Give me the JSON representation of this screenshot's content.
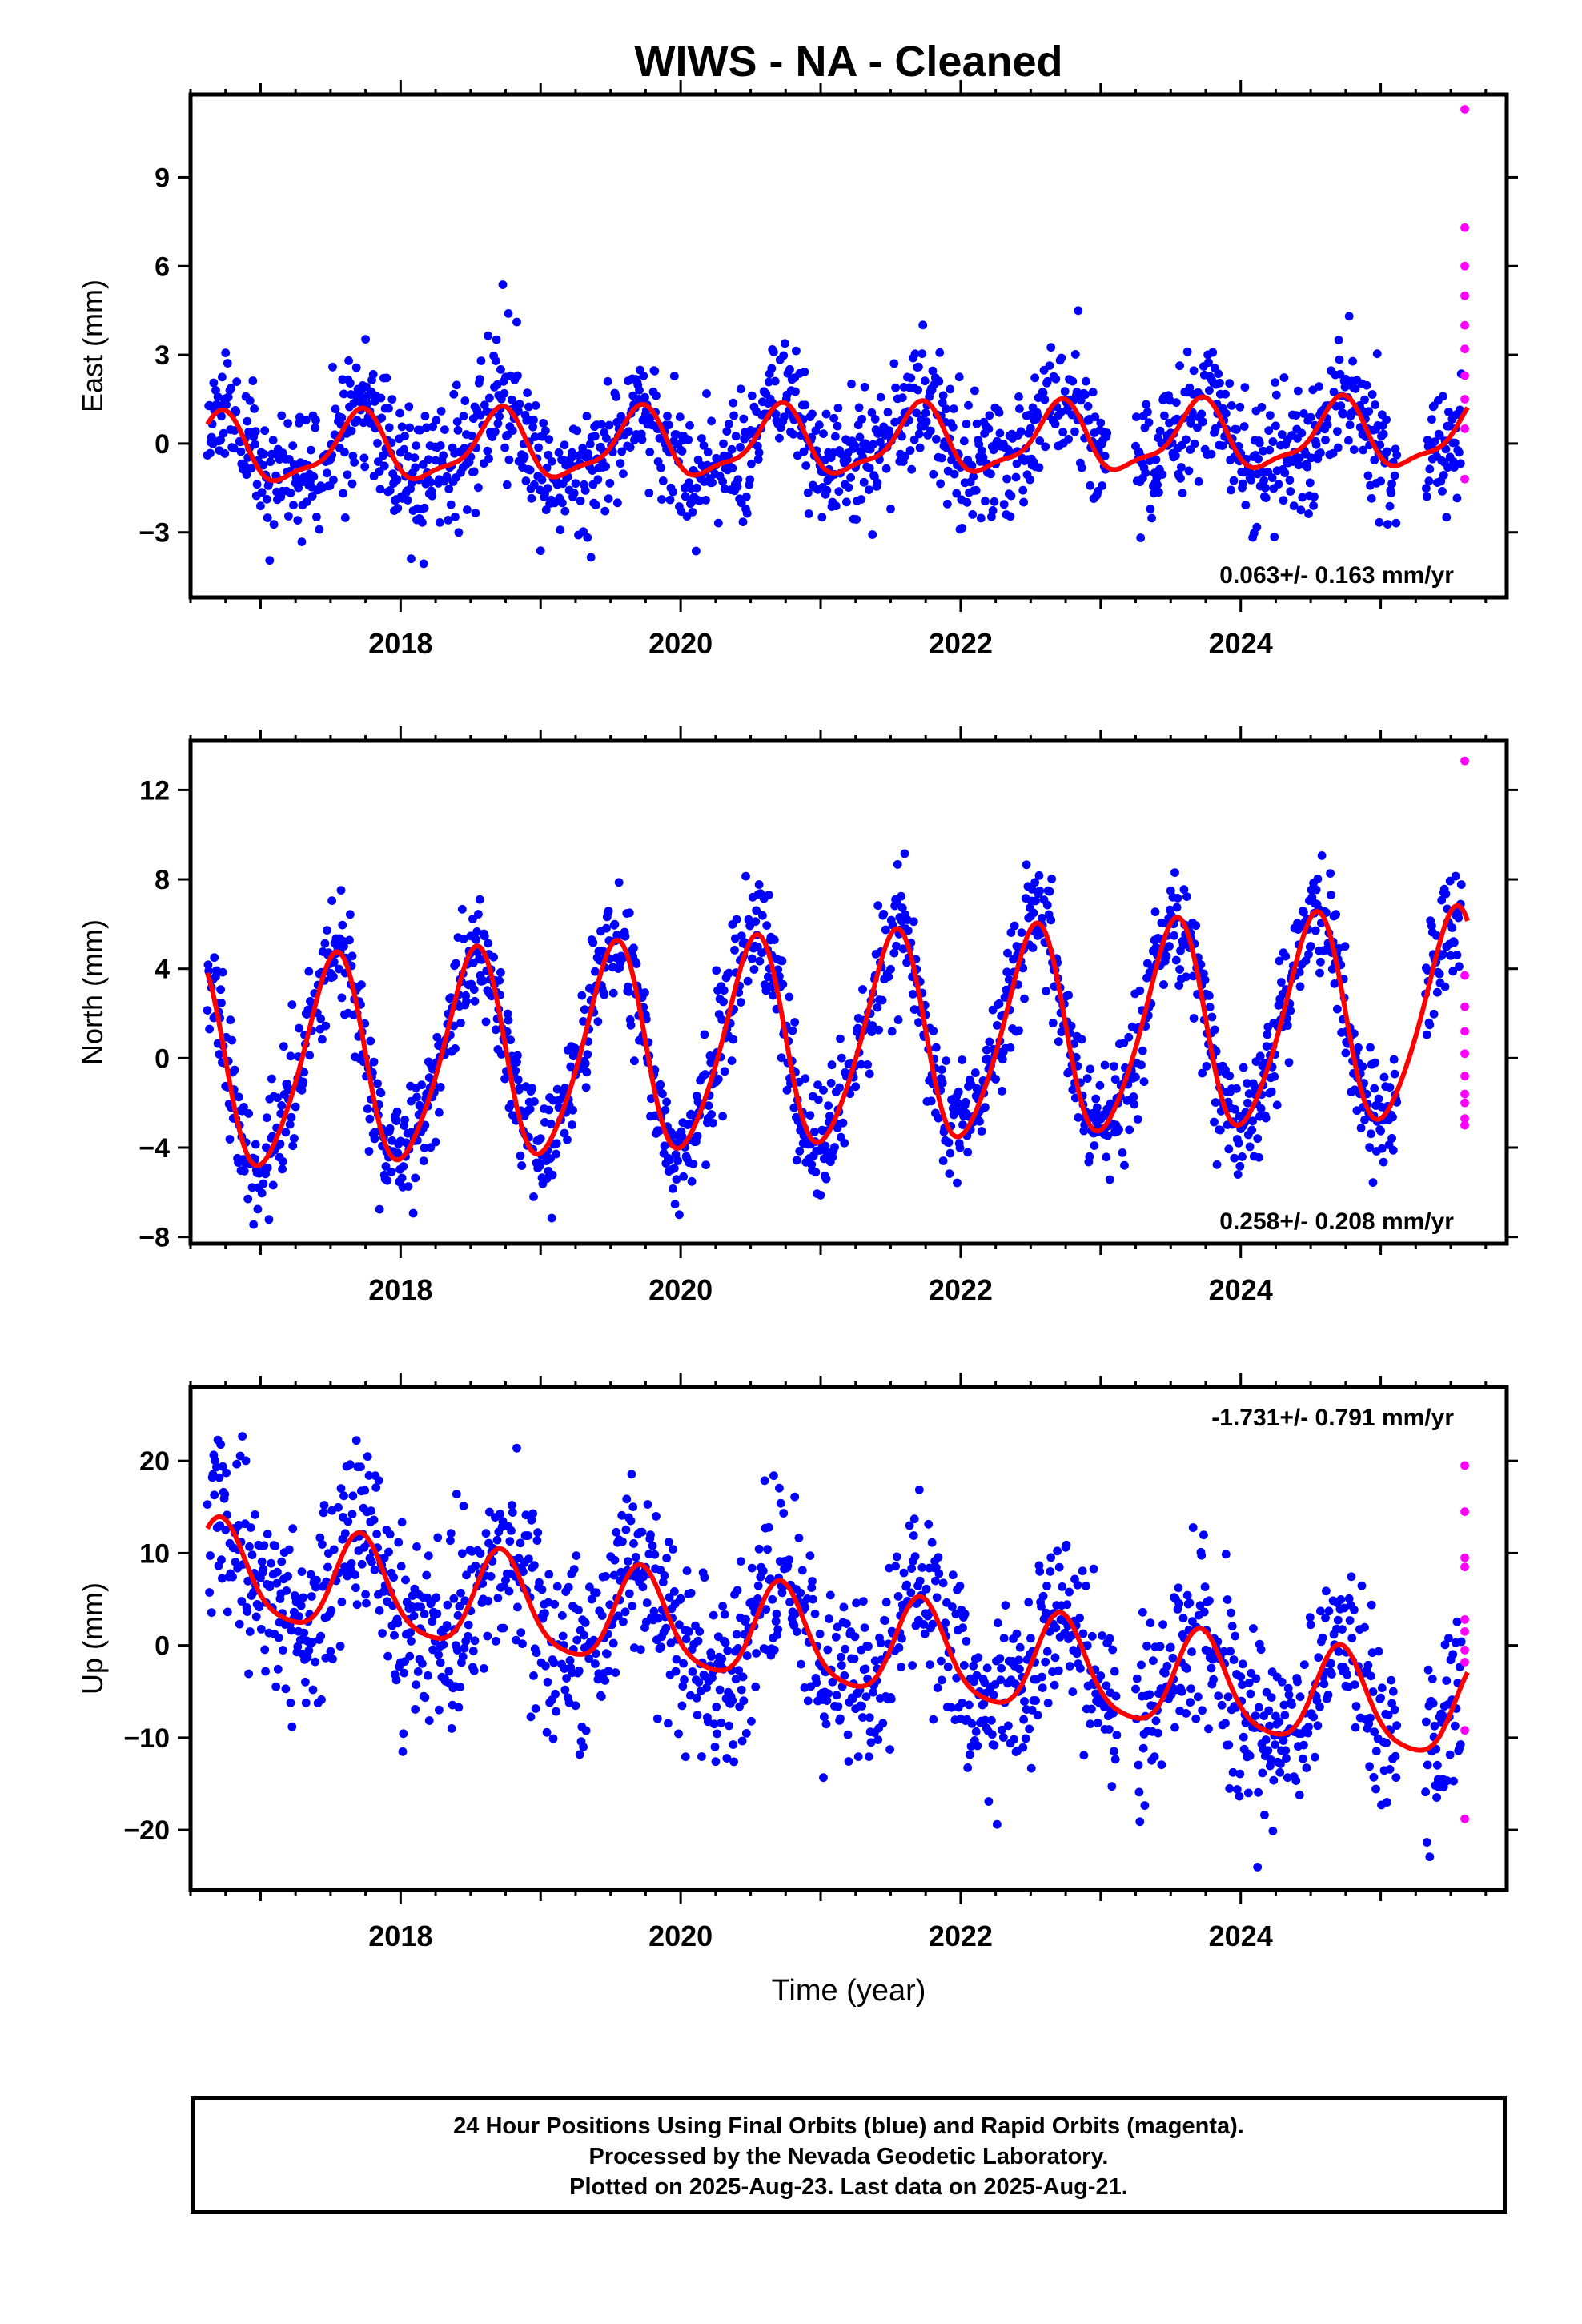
{
  "title": "WIWS  - NA - Cleaned",
  "footer": {
    "line1": "24 Hour Positions Using Final Orbits (blue) and Rapid Orbits (magenta).",
    "line2": "Processed by the Nevada Geodetic Laboratory.",
    "line3": "Plotted on 2025-Aug-23. Last data on 2025-Aug-21."
  },
  "colors": {
    "final_orbits": "#0000ff",
    "rapid_orbits": "#ff00ff",
    "fit": "#ff0000"
  },
  "chart_data": [
    {
      "type": "scatter",
      "ylabel": "East (mm)",
      "xlabel": "",
      "xlim": [
        2016.5,
        2025.9
      ],
      "ylim": [
        -5.2,
        11.8
      ],
      "xticks": [
        2018,
        2020,
        2022,
        2024
      ],
      "yticks": [
        -3,
        0,
        3,
        6,
        9
      ],
      "rate_label": "0.063+/- 0.163 mm/yr",
      "rate_position": "bottom-right",
      "fit": {
        "mean": 0.0,
        "trend": 0.063,
        "annual_amp": 1.1,
        "annual_peak": 0.7,
        "semiannual_amp": 0.35,
        "semiannual_peak": 0.25
      },
      "scatter": {
        "noise": 1.1,
        "seed": 11,
        "step": 0.005,
        "gaps": [
          [
            2023.05,
            2023.25
          ],
          [
            2025.12,
            2025.32
          ]
        ]
      },
      "rapid": {
        "x": [
          2025.6,
          2025.6,
          2025.6,
          2025.6,
          2025.6,
          2025.6,
          2025.6,
          2025.6,
          2025.6,
          2025.6
        ],
        "y": [
          11.3,
          7.3,
          6.0,
          5.0,
          4.0,
          3.2,
          2.3,
          1.5,
          0.5,
          -1.2
        ]
      }
    },
    {
      "type": "scatter",
      "ylabel": "North (mm)",
      "xlabel": "",
      "xlim": [
        2016.5,
        2025.9
      ],
      "ylim": [
        -8.3,
        14.2
      ],
      "xticks": [
        2018,
        2020,
        2022,
        2024
      ],
      "yticks": [
        -8,
        -4,
        0,
        4,
        8,
        12
      ],
      "rate_label": "0.258+/- 0.208 mm/yr",
      "rate_position": "bottom-right",
      "fit": {
        "mean": 0.7,
        "trend": 0.258,
        "annual_amp": 4.6,
        "annual_peak": 0.52,
        "semiannual_amp": 0.6,
        "semiannual_peak": 0.1
      },
      "scatter": {
        "noise": 1.3,
        "seed": 23,
        "step": 0.005,
        "gaps": [
          [
            2025.12,
            2025.32
          ]
        ]
      },
      "rapid": {
        "x": [
          2025.6,
          2025.6,
          2025.6,
          2025.6,
          2025.6,
          2025.6,
          2025.6,
          2025.6,
          2025.6,
          2025.6
        ],
        "y": [
          13.3,
          3.7,
          2.3,
          1.2,
          0.2,
          -0.8,
          -1.6,
          -2.0,
          -2.7,
          -3.0
        ]
      }
    },
    {
      "type": "scatter",
      "ylabel": "Up (mm)",
      "xlabel": "Time (year)",
      "xlim": [
        2016.5,
        2025.9
      ],
      "ylim": [
        -26.5,
        28
      ],
      "xticks": [
        2018,
        2020,
        2022,
        2024
      ],
      "yticks": [
        -20,
        -10,
        0,
        10,
        20
      ],
      "rate_label": "-1.731+/- 0.791 mm/yr",
      "rate_position": "top-right",
      "fit": {
        "mean": 0.0,
        "trend": -1.731,
        "annual_amp": 5.2,
        "annual_peak": 0.72,
        "semiannual_amp": 1.0,
        "semiannual_peak": 0.2
      },
      "scatter": {
        "noise": 4.8,
        "seed": 37,
        "step": 0.005,
        "gaps": [
          [
            2023.12,
            2023.25
          ],
          [
            2025.12,
            2025.32
          ]
        ]
      },
      "rapid": {
        "x": [
          2025.6,
          2025.6,
          2025.6,
          2025.6,
          2025.6,
          2025.6,
          2025.6,
          2025.6,
          2025.6,
          2025.6
        ],
        "y": [
          19.5,
          14.5,
          9.5,
          8.5,
          2.8,
          1.5,
          -0.5,
          -1.8,
          -9.2,
          -18.8
        ]
      }
    }
  ]
}
